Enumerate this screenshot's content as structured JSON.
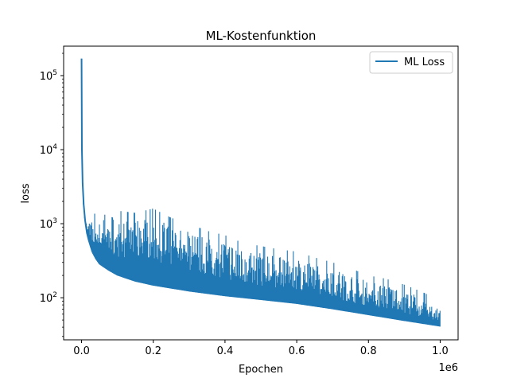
{
  "chart_data": {
    "type": "line",
    "title": "ML-Kostenfunktion",
    "xlabel": "Epochen",
    "ylabel": "loss",
    "x_offset_label": "1e6",
    "xlim": [
      -50000,
      1050000
    ],
    "ylim": [
      27,
      250000
    ],
    "yscale": "log",
    "x_ticks": [
      0,
      200000,
      400000,
      600000,
      800000,
      1000000
    ],
    "x_tick_labels": [
      "0.0",
      "0.2",
      "0.4",
      "0.6",
      "0.8",
      "1.0"
    ],
    "y_major_ticks": [
      100,
      1000,
      10000,
      100000
    ],
    "y_tick_base": "10",
    "y_tick_exponents": [
      "2",
      "3",
      "4",
      "5"
    ],
    "grid": false,
    "legend_position": "top-right",
    "series": [
      {
        "name": "ML Loss",
        "color": "#1f77b4",
        "x": [
          0,
          1000,
          3000,
          6000,
          10000,
          15000,
          20000,
          30000,
          40000,
          50000,
          75000,
          100000,
          150000,
          200000,
          250000,
          300000,
          400000,
          500000,
          600000,
          700000,
          800000,
          900000,
          1000000
        ],
        "y": [
          170000,
          10000,
          3500,
          1800,
          1100,
          750,
          600,
          420,
          340,
          290,
          240,
          205,
          170,
          150,
          137,
          125,
          108,
          96,
          85,
          72,
          60,
          50,
          42
        ],
        "spikes_envelope": {
          "x": [
            5000,
            20000,
            40000,
            70000,
            100000,
            150000,
            200000,
            250000,
            300000,
            350000,
            400000,
            450000,
            500000,
            550000,
            600000,
            650000,
            700000,
            750000,
            800000,
            850000,
            900000,
            950000,
            1000000
          ],
          "y": [
            1000,
            1200,
            1400,
            1800,
            1500,
            1400,
            1600,
            1200,
            1000,
            800,
            700,
            550,
            500,
            450,
            420,
            350,
            300,
            250,
            200,
            180,
            150,
            120,
            90
          ]
        }
      }
    ]
  }
}
